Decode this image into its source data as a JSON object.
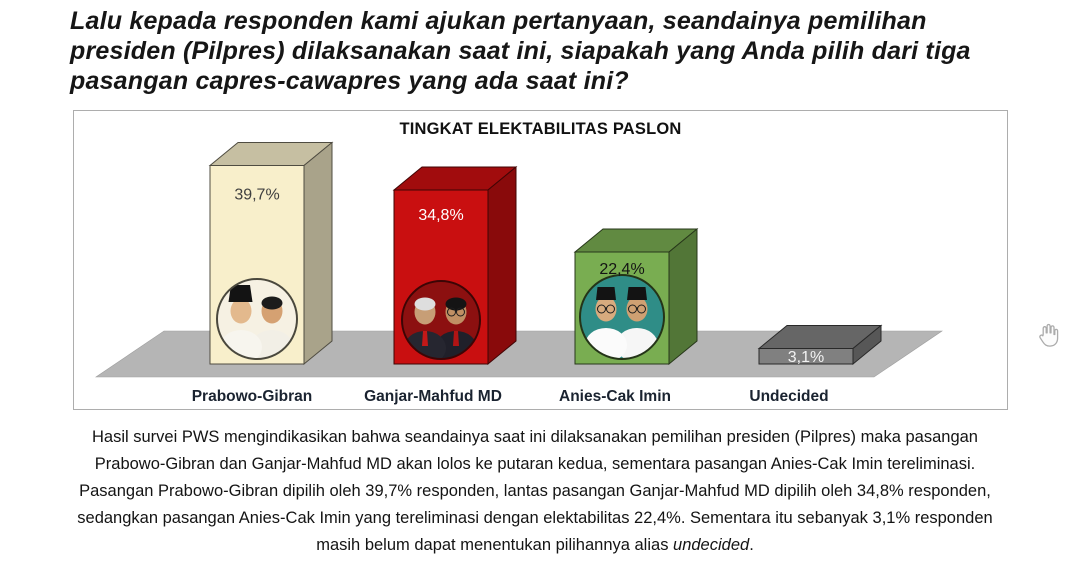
{
  "question_title": "Lalu kepada responden kami ajukan pertanyaan, seandainya pemilihan presiden (Pilpres) dilaksanakan saat ini, siapakah yang Anda pilih dari tiga pasangan capres-cawapres yang ada saat ini?",
  "chart_data": {
    "type": "bar",
    "style": "3d-blocks-on-gray-floor",
    "title": "TINGKAT ELEKTABILITAS PASLON",
    "categories": [
      "Prabowo-Gibran",
      "Ganjar-Mahfud MD",
      "Anies-Cak Imin",
      "Undecided"
    ],
    "values": [
      39.7,
      34.8,
      22.4,
      3.1
    ],
    "ylim": [
      0,
      45
    ],
    "grid": false,
    "legend": "none",
    "floor_color": "#b5b5b5",
    "bars": [
      {
        "label": "Prabowo-Gibran",
        "value": 39.7,
        "value_label": "39,7%",
        "front_color": "#f8efcb",
        "value_text_color": "#3f3f3f",
        "photo": {
          "description": "Prabowo & Gibran circular portrait",
          "bg_color": "#f6f1e3"
        }
      },
      {
        "label": "Ganjar-Mahfud MD",
        "value": 34.8,
        "value_label": "34,8%",
        "front_color": "#c90f10",
        "value_text_color": "#ffffff",
        "photo": {
          "description": "Ganjar & Mahfud MD circular portrait",
          "bg_color": "#8c1010"
        }
      },
      {
        "label": "Anies-Cak Imin",
        "value": 22.4,
        "value_label": "22,4%",
        "front_color": "#79ad51",
        "value_text_color": "#141414",
        "photo": {
          "description": "Anies & Cak Imin circular portrait",
          "bg_color": "#2f8d87"
        }
      },
      {
        "label": "Undecided",
        "value": 3.1,
        "value_label": "3,1%",
        "front_color": "#808080",
        "value_text_color": "#f2f2f2",
        "photo": null
      }
    ]
  },
  "summary": {
    "text_before_italic": "Hasil survei PWS mengindikasikan bahwa seandainya saat ini dilaksanakan pemilihan presiden (Pilpres) maka pasangan Prabowo-Gibran dan Ganjar-Mahfud MD akan lolos ke putaran kedua, sementara pasangan Anies-Cak Imin tereliminasi. Pasangan Prabowo-Gibran dipilih oleh 39,7% responden, lantas pasangan Ganjar-Mahfud MD dipilih oleh 34,8% responden, sedangkan pasangan Anies-Cak Imin yang tereliminasi dengan elektabilitas 22,4%. Sementara itu sebanyak 3,1% responden masih belum dapat menentukan pilihannya alias ",
    "italic_word": "undecided",
    "suffix": "."
  },
  "cursor_icon": "hand-grab"
}
